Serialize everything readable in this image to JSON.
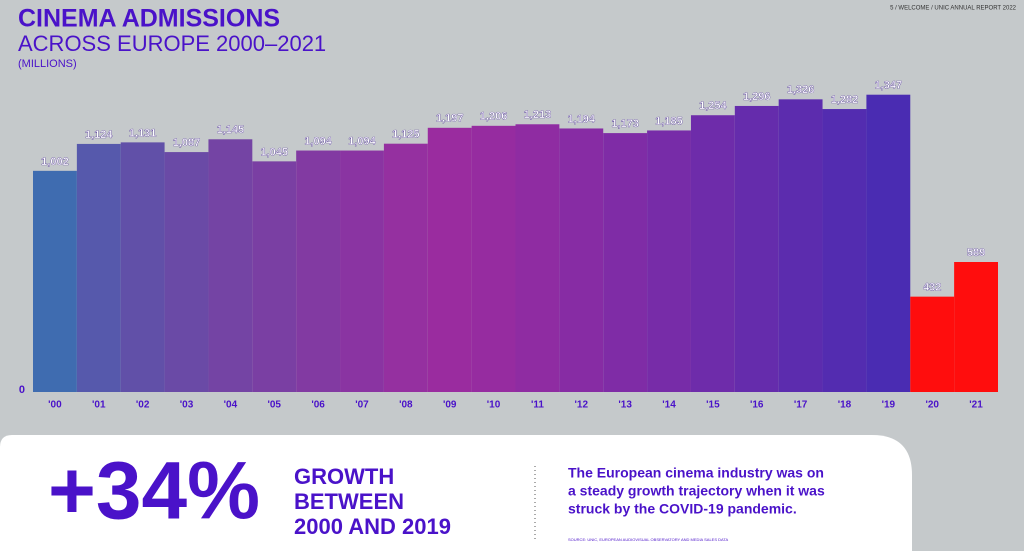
{
  "page_ref": "5 / WELCOME / UNIC ANNUAL REPORT 2022",
  "chart_data": {
    "type": "bar",
    "title": "CINEMA ADMISSIONS",
    "subtitle": "ACROSS EUROPE 2000–2021",
    "unit_label": "(MILLIONS)",
    "categories": [
      "'00",
      "'01",
      "'02",
      "'03",
      "'04",
      "'05",
      "'06",
      "'07",
      "'08",
      "'09",
      "'10",
      "'11",
      "'12",
      "'13",
      "'14",
      "'15",
      "'16",
      "'17",
      "'18",
      "'19",
      "'20",
      "'21"
    ],
    "values": [
      1002,
      1124,
      1131,
      1087,
      1145,
      1045,
      1094,
      1094,
      1125,
      1197,
      1206,
      1213,
      1194,
      1173,
      1185,
      1254,
      1296,
      1326,
      1282,
      1347,
      432,
      589
    ],
    "value_labels": [
      "1,002",
      "1,124",
      "1,131",
      "1,087",
      "1,145",
      "1,045",
      "1,094",
      "1,094",
      "1,125",
      "1,197",
      "1,206",
      "1,213",
      "1,194",
      "1,173",
      "1,185",
      "1,254",
      "1,296",
      "1,326",
      "1,282",
      "1,347",
      "432",
      "589"
    ],
    "colors": [
      "#3f6cb0",
      "#5659ac",
      "#6150a8",
      "#6a4aa6",
      "#7444a4",
      "#7a3fa3",
      "#823aa2",
      "#8a34a2",
      "#9530a0",
      "#9a2c9f",
      "#962ca0",
      "#8f2ca2",
      "#872ca4",
      "#7f2ca6",
      "#772ca8",
      "#6e2caa",
      "#652cac",
      "#5c2cae",
      "#532cb0",
      "#4a2cb2",
      "#ff0d0d",
      "#ff0d0d"
    ],
    "ylim": [
      0,
      1400
    ],
    "yticks": [
      0
    ]
  },
  "callout": {
    "stat": "+34%",
    "stat_label": [
      "GROWTH",
      "BETWEEN",
      "2000 AND 2019"
    ],
    "text": [
      "The European cinema industry was on",
      "a steady growth trajectory when it was",
      "struck by the COVID-19 pandemic."
    ],
    "source": "SOURCE: UNIC, EUROPEAN AUDIOVISUAL OBSERVATORY AND MEDIA SALES DATA"
  }
}
